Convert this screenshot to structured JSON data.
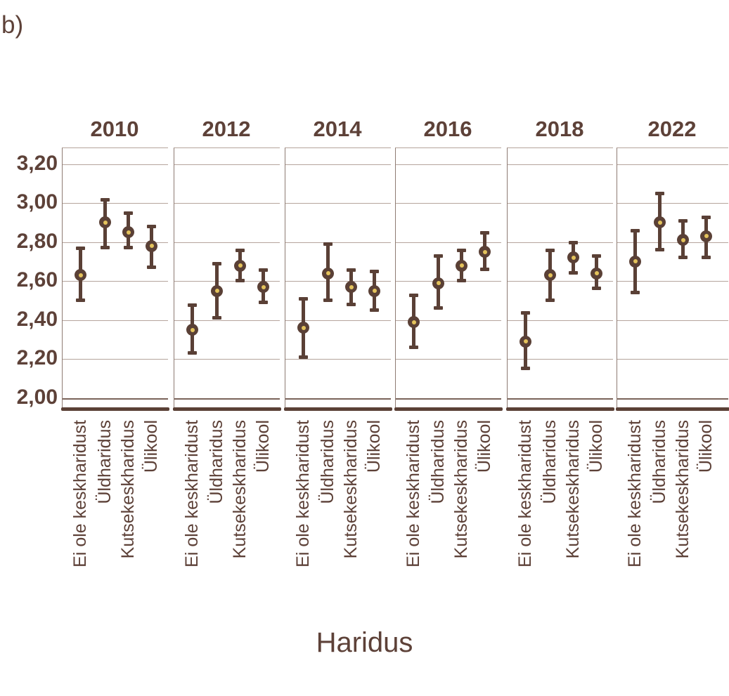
{
  "figure_label": "b)",
  "chart_data": {
    "type": "scatter",
    "subtype": "pointrange-with-error-bars-faceted",
    "title": "",
    "xlabel": "Haridus",
    "ylabel": "",
    "ylim": [
      2.0,
      3.2
    ],
    "grid": true,
    "legend_position": "none",
    "ytick_labels": [
      "3,20",
      "3,00",
      "2,80",
      "2,60",
      "2,40",
      "2,20",
      "2,00"
    ],
    "ytick_values": [
      3.2,
      3.0,
      2.8,
      2.6,
      2.4,
      2.2,
      2.0
    ],
    "categories": [
      "Ei ole keskharidust",
      "Üldharidus",
      "Kutsekeskharidus",
      "Ülikool"
    ],
    "facets": [
      {
        "year": "2010",
        "points": [
          {
            "category": "Ei ole keskharidust",
            "value": 2.63,
            "lo": 2.5,
            "hi": 2.77
          },
          {
            "category": "Üldharidus",
            "value": 2.9,
            "lo": 2.77,
            "hi": 3.02
          },
          {
            "category": "Kutsekeskharidus",
            "value": 2.85,
            "lo": 2.77,
            "hi": 2.95
          },
          {
            "category": "Ülikool",
            "value": 2.78,
            "lo": 2.67,
            "hi": 2.88
          }
        ]
      },
      {
        "year": "2012",
        "points": [
          {
            "category": "Ei ole keskharidust",
            "value": 2.35,
            "lo": 2.23,
            "hi": 2.48
          },
          {
            "category": "Üldharidus",
            "value": 2.55,
            "lo": 2.41,
            "hi": 2.69
          },
          {
            "category": "Kutsekeskharidus",
            "value": 2.68,
            "lo": 2.6,
            "hi": 2.76
          },
          {
            "category": "Ülikool",
            "value": 2.57,
            "lo": 2.49,
            "hi": 2.66
          }
        ]
      },
      {
        "year": "2014",
        "points": [
          {
            "category": "Ei ole keskharidust",
            "value": 2.36,
            "lo": 2.21,
            "hi": 2.51
          },
          {
            "category": "Üldharidus",
            "value": 2.64,
            "lo": 2.5,
            "hi": 2.79
          },
          {
            "category": "Kutsekeskharidus",
            "value": 2.57,
            "lo": 2.48,
            "hi": 2.66
          },
          {
            "category": "Ülikool",
            "value": 2.55,
            "lo": 2.45,
            "hi": 2.65
          }
        ]
      },
      {
        "year": "2016",
        "points": [
          {
            "category": "Ei ole keskharidust",
            "value": 2.39,
            "lo": 2.26,
            "hi": 2.53
          },
          {
            "category": "Üldharidus",
            "value": 2.59,
            "lo": 2.46,
            "hi": 2.73
          },
          {
            "category": "Kutsekeskharidus",
            "value": 2.68,
            "lo": 2.6,
            "hi": 2.76
          },
          {
            "category": "Ülikool",
            "value": 2.75,
            "lo": 2.66,
            "hi": 2.85
          }
        ]
      },
      {
        "year": "2018",
        "points": [
          {
            "category": "Ei ole keskharidust",
            "value": 2.29,
            "lo": 2.15,
            "hi": 2.44
          },
          {
            "category": "Üldharidus",
            "value": 2.63,
            "lo": 2.5,
            "hi": 2.76
          },
          {
            "category": "Kutsekeskharidus",
            "value": 2.72,
            "lo": 2.64,
            "hi": 2.8
          },
          {
            "category": "Ülikool",
            "value": 2.64,
            "lo": 2.56,
            "hi": 2.73
          }
        ]
      },
      {
        "year": "2022",
        "points": [
          {
            "category": "Ei ole keskharidust",
            "value": 2.7,
            "lo": 2.54,
            "hi": 2.86
          },
          {
            "category": "Üldharidus",
            "value": 2.9,
            "lo": 2.76,
            "hi": 3.05
          },
          {
            "category": "Kutsekeskharidus",
            "value": 2.81,
            "lo": 2.72,
            "hi": 2.91
          },
          {
            "category": "Ülikool",
            "value": 2.83,
            "lo": 2.72,
            "hi": 2.93
          }
        ]
      }
    ],
    "colors": {
      "ink": "#5d4138",
      "point_and_bar": "#5a4036",
      "point_center": "#e4c35c",
      "gridline": "#b5a49c",
      "panel_border": "#8e7b73",
      "bottom_gridline": "#7a635a",
      "background": "#ffffff"
    }
  }
}
